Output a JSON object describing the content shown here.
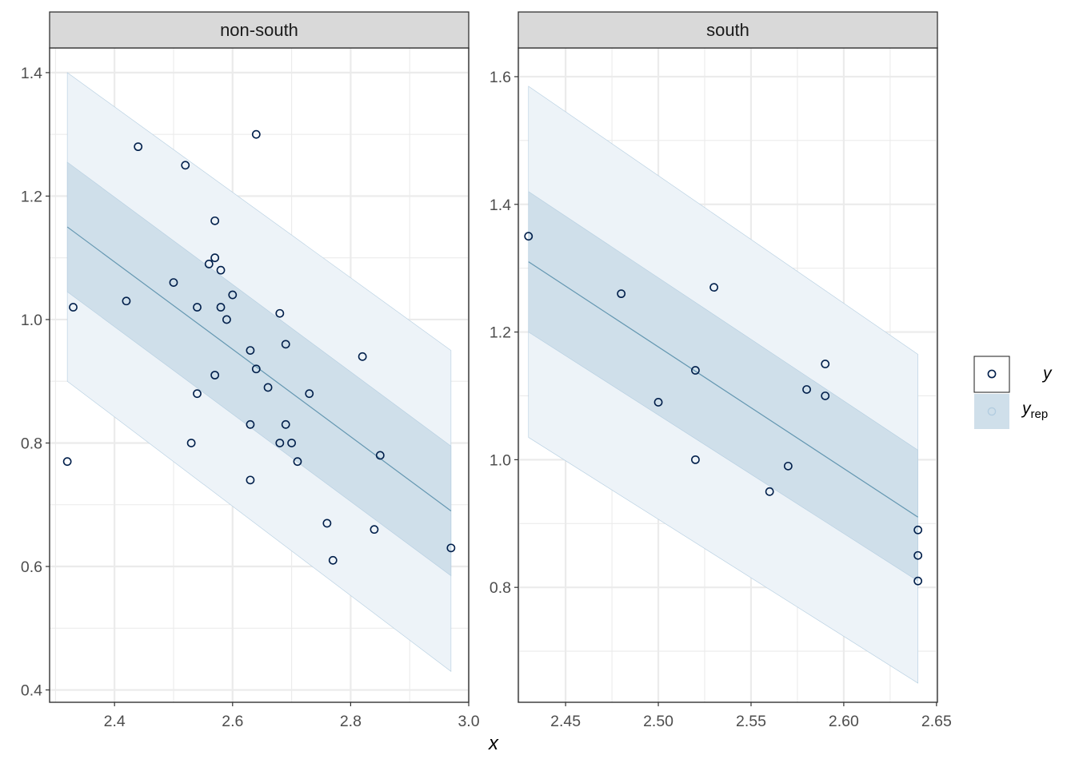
{
  "chart_data": {
    "type": "scatter",
    "xlabel": "x",
    "ylabel": "",
    "legend": {
      "placement": "right",
      "entries": [
        {
          "label": "y",
          "key": "y"
        },
        {
          "label": "y",
          "sub": "rep",
          "key": "yrep"
        }
      ]
    },
    "colors": {
      "point_stroke": "#011f4b",
      "inner_band": "#cfdfea",
      "outer_band": "#edf3f8",
      "median_line": "#6497b1",
      "band_edge": "#b3cde0"
    },
    "panels": [
      {
        "strip": "non-south",
        "xlim": [
          2.29,
          3.0
        ],
        "ylim": [
          0.38,
          1.44
        ],
        "x_ticks": [
          2.4,
          2.6,
          2.8,
          3.0
        ],
        "x_tick_labels": [
          "2.4",
          "2.6",
          "2.8",
          "3.0"
        ],
        "y_ticks": [
          0.4,
          0.6,
          0.8,
          1.0,
          1.2,
          1.4
        ],
        "y_tick_labels": [
          "0.4",
          "0.6",
          "0.8",
          "1.0",
          "1.2",
          "1.4"
        ],
        "band_x": [
          2.32,
          2.97
        ],
        "median": [
          1.15,
          0.69
        ],
        "inner_lower": [
          1.045,
          0.585
        ],
        "inner_upper": [
          1.255,
          0.795
        ],
        "outer_lower": [
          0.9,
          0.43
        ],
        "outer_upper": [
          1.4,
          0.95
        ],
        "points": [
          [
            2.32,
            0.77
          ],
          [
            2.33,
            1.02
          ],
          [
            2.42,
            1.03
          ],
          [
            2.44,
            1.28
          ],
          [
            2.5,
            1.06
          ],
          [
            2.52,
            1.25
          ],
          [
            2.53,
            0.8
          ],
          [
            2.54,
            1.02
          ],
          [
            2.54,
            0.88
          ],
          [
            2.56,
            1.09
          ],
          [
            2.57,
            1.16
          ],
          [
            2.57,
            1.1
          ],
          [
            2.57,
            0.91
          ],
          [
            2.58,
            1.08
          ],
          [
            2.58,
            1.02
          ],
          [
            2.59,
            1.0
          ],
          [
            2.6,
            1.04
          ],
          [
            2.63,
            0.95
          ],
          [
            2.63,
            0.83
          ],
          [
            2.63,
            0.74
          ],
          [
            2.64,
            1.3
          ],
          [
            2.64,
            0.92
          ],
          [
            2.66,
            0.89
          ],
          [
            2.68,
            1.01
          ],
          [
            2.68,
            0.8
          ],
          [
            2.69,
            0.96
          ],
          [
            2.69,
            0.83
          ],
          [
            2.7,
            0.8
          ],
          [
            2.71,
            0.77
          ],
          [
            2.73,
            0.88
          ],
          [
            2.76,
            0.67
          ],
          [
            2.77,
            0.61
          ],
          [
            2.82,
            0.94
          ],
          [
            2.84,
            0.66
          ],
          [
            2.85,
            0.78
          ],
          [
            2.97,
            0.63
          ]
        ]
      },
      {
        "strip": "south",
        "xlim": [
          2.4245,
          2.6505
        ],
        "ylim": [
          0.62,
          1.645
        ],
        "x_ticks": [
          2.45,
          2.5,
          2.55,
          2.6,
          2.65
        ],
        "x_tick_labels": [
          "2.45",
          "2.50",
          "2.55",
          "2.60",
          "2.65"
        ],
        "y_ticks": [
          0.8,
          1.0,
          1.2,
          1.4,
          1.6
        ],
        "y_tick_labels": [
          "0.8",
          "1.0",
          "1.2",
          "1.4",
          "1.6"
        ],
        "band_x": [
          2.43,
          2.64
        ],
        "median": [
          1.31,
          0.91
        ],
        "inner_lower": [
          1.2,
          0.81
        ],
        "inner_upper": [
          1.42,
          1.015
        ],
        "outer_lower": [
          1.035,
          0.65
        ],
        "outer_upper": [
          1.585,
          1.165
        ],
        "points": [
          [
            2.43,
            1.35
          ],
          [
            2.48,
            1.26
          ],
          [
            2.5,
            1.09
          ],
          [
            2.52,
            1.14
          ],
          [
            2.52,
            1.0
          ],
          [
            2.53,
            1.27
          ],
          [
            2.56,
            0.95
          ],
          [
            2.57,
            0.99
          ],
          [
            2.58,
            1.11
          ],
          [
            2.59,
            1.15
          ],
          [
            2.59,
            1.1
          ],
          [
            2.64,
            0.89
          ],
          [
            2.64,
            0.85
          ],
          [
            2.64,
            0.81
          ]
        ]
      }
    ]
  }
}
